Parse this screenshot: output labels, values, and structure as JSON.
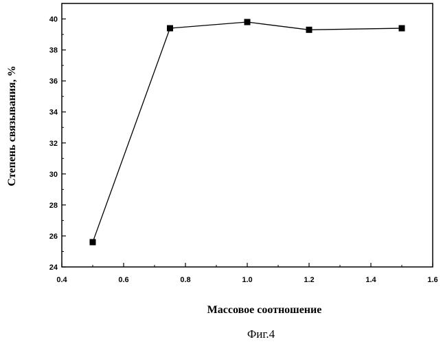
{
  "chart_data": {
    "type": "line",
    "xlabel": "Массовое соотношение",
    "ylabel": "Степень связывания, %",
    "caption": "Фиг.4",
    "xlim": [
      0.4,
      1.6
    ],
    "ylim": [
      24,
      41
    ],
    "xticks": [
      0.4,
      0.6,
      0.8,
      1.0,
      1.2,
      1.4,
      1.6
    ],
    "xtick_labels": [
      "0.4",
      "0.6",
      "0.8",
      "1.0",
      "1.2",
      "1.4",
      "1.6"
    ],
    "yticks": [
      24,
      26,
      28,
      30,
      32,
      34,
      36,
      38,
      40
    ],
    "ytick_labels": [
      "24",
      "26",
      "28",
      "30",
      "32",
      "34",
      "36",
      "38",
      "40"
    ],
    "grid": false,
    "series": [
      {
        "marker": "square",
        "color": "#000000",
        "x": [
          0.5,
          0.75,
          1.0,
          1.2,
          1.5
        ],
        "y": [
          25.6,
          39.4,
          39.8,
          39.3,
          39.4
        ]
      }
    ]
  }
}
